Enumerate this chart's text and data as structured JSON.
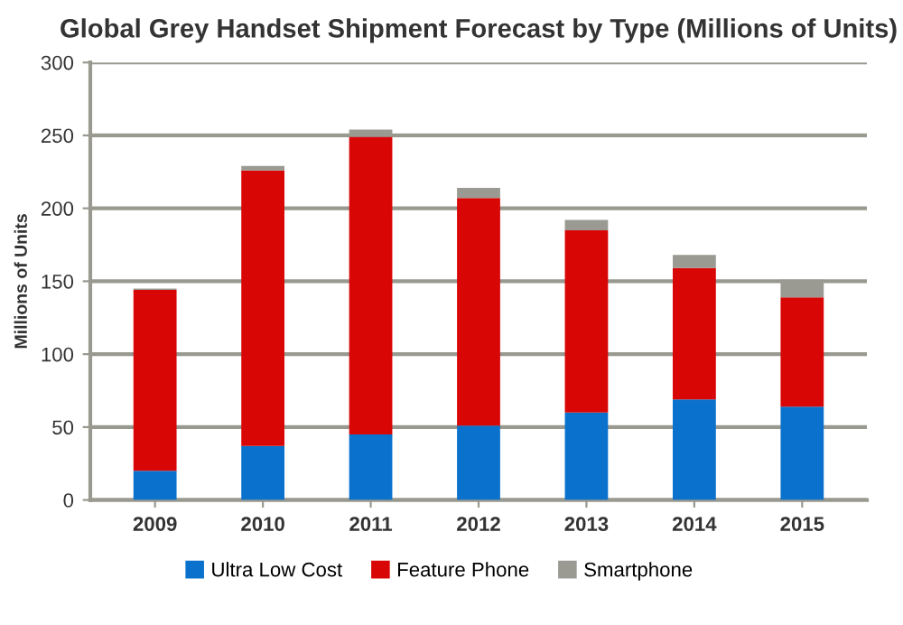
{
  "chart_data": {
    "type": "bar",
    "stacked": true,
    "title": "Global Grey Handset Shipment Forecast by Type (Millions of Units)",
    "ylabel": "Millions of Units",
    "categories": [
      "2009",
      "2010",
      "2011",
      "2012",
      "2013",
      "2014",
      "2015"
    ],
    "series": [
      {
        "name": "Ultra Low Cost",
        "color": "#0a72cc",
        "values": [
          20,
          37,
          45,
          51,
          60,
          69,
          64
        ]
      },
      {
        "name": "Feature Phone",
        "color": "#d90606",
        "values": [
          124,
          189,
          204,
          156,
          125,
          90,
          75
        ]
      },
      {
        "name": "Smartphone",
        "color": "#9a9a92",
        "values": [
          1,
          3,
          5,
          7,
          7,
          9,
          12
        ]
      }
    ],
    "ylim": [
      0,
      300
    ],
    "yticks": [
      0,
      50,
      100,
      150,
      200,
      250,
      300
    ],
    "grid": "y",
    "legend": "bottom"
  }
}
